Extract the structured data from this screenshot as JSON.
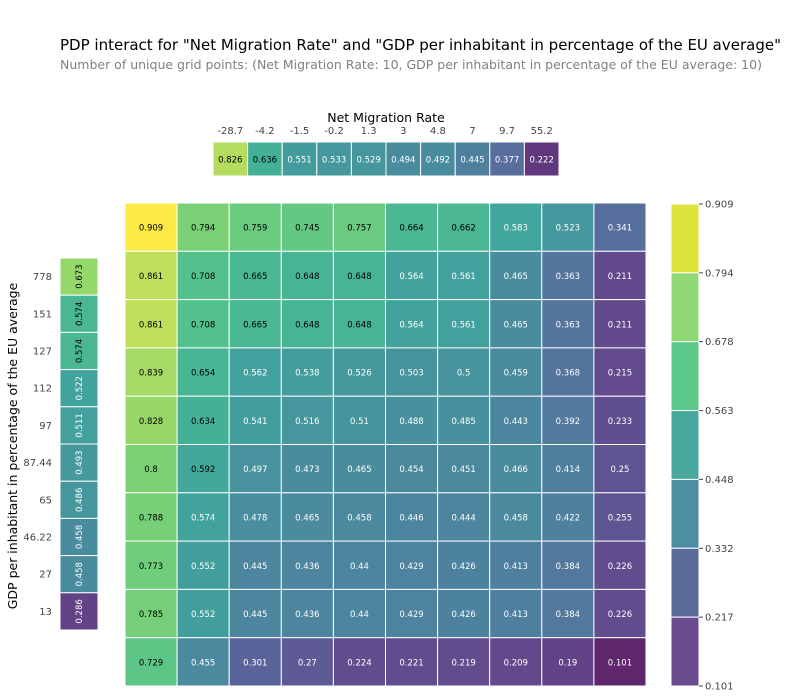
{
  "title": "PDP interact for \"Net Migration Rate\" and \"GDP per inhabitant in percentage of the EU average\"",
  "subtitle": "Number of unique grid points: (Net Migration Rate: 10, GDP per inhabitant in percentage of the EU average: 10)",
  "chart_data": {
    "type": "heatmap",
    "x_feature": "Net Migration Rate",
    "y_feature": "GDP per inhabitant in percentage of the EU average",
    "x_ticks": [
      "-28.7",
      "-4.2",
      "-1.5",
      "-0.2",
      "1.3",
      "3",
      "4.8",
      "7",
      "9.7",
      "55.2"
    ],
    "y_ticks": [
      "778",
      "151",
      "127",
      "112",
      "97",
      "87.44",
      "65",
      "46.22",
      "27",
      "13"
    ],
    "x_marginal": [
      0.826,
      0.636,
      0.551,
      0.533,
      0.529,
      0.494,
      0.492,
      0.445,
      0.377,
      0.222
    ],
    "y_marginal": [
      0.673,
      0.574,
      0.574,
      0.522,
      0.511,
      0.493,
      0.486,
      0.458,
      0.458,
      0.286
    ],
    "matrix": [
      [
        0.909,
        0.794,
        0.759,
        0.745,
        0.757,
        0.664,
        0.662,
        0.583,
        0.523,
        0.341
      ],
      [
        0.861,
        0.708,
        0.665,
        0.648,
        0.648,
        0.564,
        0.561,
        0.465,
        0.363,
        0.211
      ],
      [
        0.861,
        0.708,
        0.665,
        0.648,
        0.648,
        0.564,
        0.561,
        0.465,
        0.363,
        0.211
      ],
      [
        0.839,
        0.654,
        0.562,
        0.538,
        0.526,
        0.503,
        0.5,
        0.459,
        0.368,
        0.215
      ],
      [
        0.828,
        0.634,
        0.541,
        0.516,
        0.51,
        0.488,
        0.485,
        0.443,
        0.392,
        0.233
      ],
      [
        0.8,
        0.592,
        0.497,
        0.473,
        0.465,
        0.454,
        0.451,
        0.466,
        0.414,
        0.25
      ],
      [
        0.788,
        0.574,
        0.478,
        0.465,
        0.458,
        0.446,
        0.444,
        0.458,
        0.422,
        0.255
      ],
      [
        0.773,
        0.552,
        0.445,
        0.436,
        0.44,
        0.429,
        0.426,
        0.413,
        0.384,
        0.226
      ],
      [
        0.785,
        0.552,
        0.445,
        0.436,
        0.44,
        0.429,
        0.426,
        0.413,
        0.384,
        0.226
      ],
      [
        0.729,
        0.455,
        0.301,
        0.27,
        0.224,
        0.221,
        0.219,
        0.209,
        0.19,
        0.101
      ]
    ],
    "colorbar_ticks": [
      0.909,
      0.794,
      0.678,
      0.563,
      0.448,
      0.332,
      0.217,
      0.101
    ],
    "colorbar_colors": [
      "#dde43e",
      "#8fd873",
      "#5cc98b",
      "#48a89e",
      "#4d8ea3",
      "#5a6b9a",
      "#6a4c8e"
    ],
    "colormap": "viridis",
    "grid": false
  }
}
